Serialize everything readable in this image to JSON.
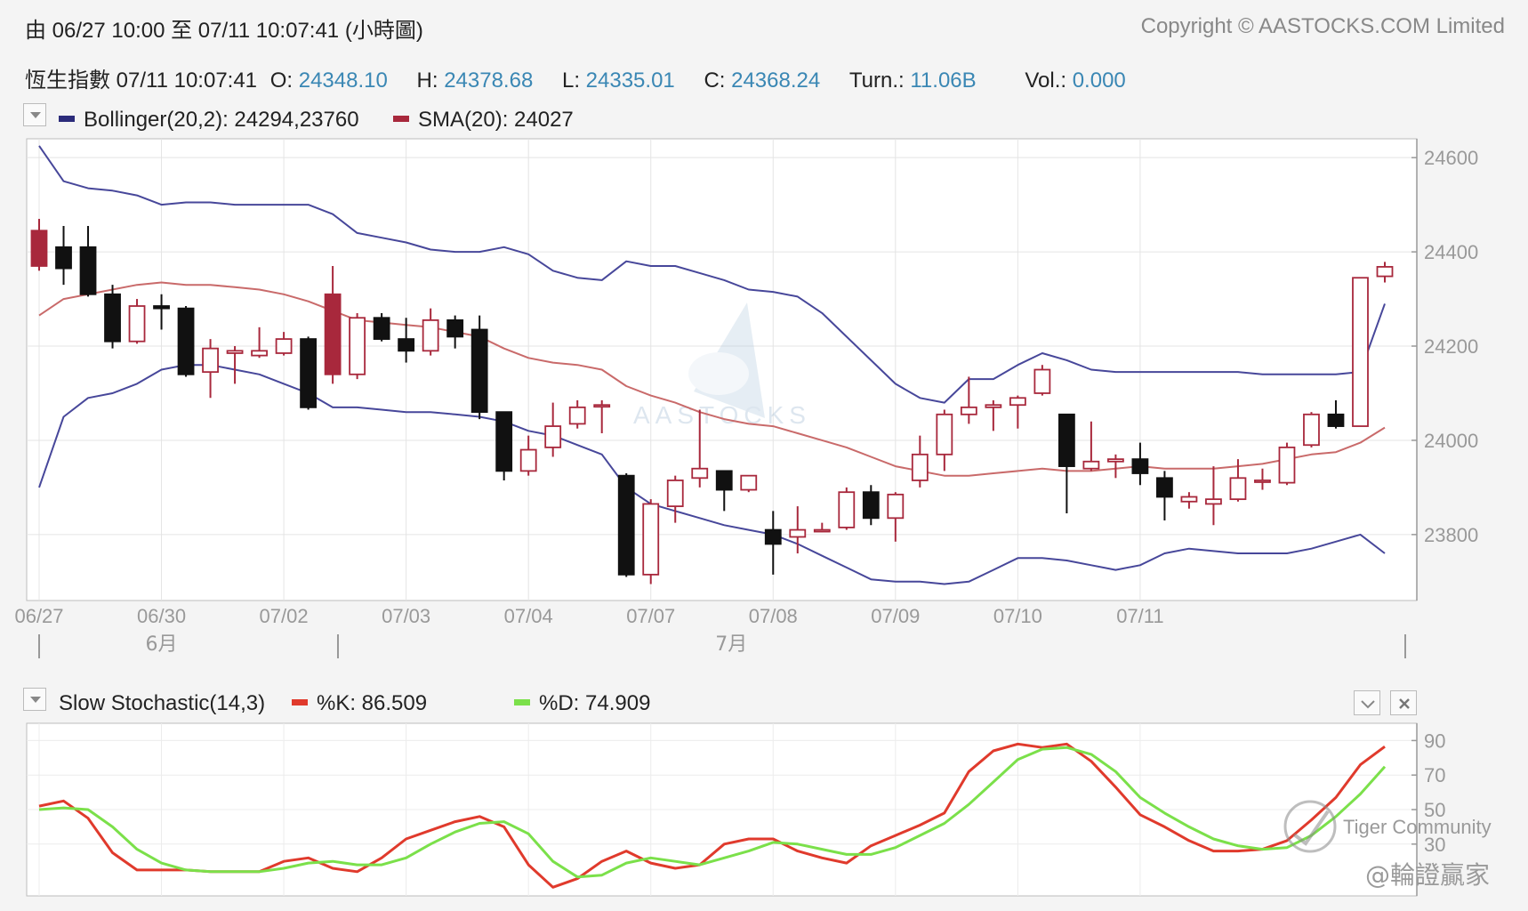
{
  "header": {
    "range_label": "由  06/27 10:00 至  07/11 10:07:41 (小時圖)",
    "copyright": "Copyright © AASTOCKS.COM Limited"
  },
  "quote": {
    "name_time": "恆生指數 07/11 10:07:41",
    "open_label": "O:",
    "open": "24348.10",
    "high_label": "H:",
    "high": "24378.68",
    "low_label": "L:",
    "low": "24335.01",
    "close_label": "C:",
    "close": "24368.24",
    "turn_label": "Turn.:",
    "turn": "11.06B",
    "vol_label": "Vol.:",
    "vol": "0.000"
  },
  "indicators": {
    "bollinger_label": "Bollinger(20,2): 24294,23760",
    "sma_label": "SMA(20): 24027",
    "stoch_title": "Slow Stochastic(14,3)",
    "k_label": "%K: 86.509",
    "d_label": "%D: 74.909"
  },
  "watermark": "AASTOCKS",
  "overlay_credits": [
    "Tiger Community",
    "@輪證贏家"
  ],
  "colors": {
    "up": "#a8283c",
    "down": "#111111",
    "bollinger": "#47479a",
    "sma": "#c96a6a",
    "k_line": "#e03a2c",
    "d_line": "#7be04a",
    "value_text": "#3a87b4"
  },
  "chart_data": [
    {
      "type": "candlestick",
      "x_ticks": [
        "06/27",
        "06/30",
        "07/02",
        "07/03",
        "07/04",
        "07/07",
        "07/08",
        "07/09",
        "07/10",
        "07/11"
      ],
      "x_tick_index": [
        0,
        5,
        10,
        15,
        20,
        25,
        30,
        35,
        40,
        45
      ],
      "month_labels": [
        {
          "label": "6月",
          "index": 5
        },
        {
          "label": "7月",
          "index": 28
        }
      ],
      "y_ticks": [
        24600,
        24400,
        24200,
        24000,
        23800
      ],
      "ylim": [
        23660,
        24640
      ],
      "candles": [
        {
          "o": 24370,
          "h": 24470,
          "l": 24360,
          "c": 24445
        },
        {
          "o": 24410,
          "h": 24455,
          "l": 24330,
          "c": 24365
        },
        {
          "o": 24410,
          "h": 24455,
          "l": 24305,
          "c": 24310
        },
        {
          "o": 24310,
          "h": 24330,
          "l": 24195,
          "c": 24210
        },
        {
          "o": 24210,
          "h": 24300,
          "l": 24205,
          "c": 24285
        },
        {
          "o": 24285,
          "h": 24310,
          "l": 24235,
          "c": 24280
        },
        {
          "o": 24280,
          "h": 24285,
          "l": 24135,
          "c": 24140
        },
        {
          "o": 24145,
          "h": 24215,
          "l": 24090,
          "c": 24195
        },
        {
          "o": 24185,
          "h": 24200,
          "l": 24120,
          "c": 24190
        },
        {
          "o": 24180,
          "h": 24240,
          "l": 24175,
          "c": 24190
        },
        {
          "o": 24185,
          "h": 24230,
          "l": 24180,
          "c": 24215
        },
        {
          "o": 24215,
          "h": 24220,
          "l": 24065,
          "c": 24070
        },
        {
          "o": 24140,
          "h": 24370,
          "l": 24120,
          "c": 24310
        },
        {
          "o": 24140,
          "h": 24270,
          "l": 24130,
          "c": 24260
        },
        {
          "o": 24260,
          "h": 24270,
          "l": 24210,
          "c": 24215
        },
        {
          "o": 24215,
          "h": 24260,
          "l": 24165,
          "c": 24190
        },
        {
          "o": 24190,
          "h": 24280,
          "l": 24180,
          "c": 24255
        },
        {
          "o": 24255,
          "h": 24265,
          "l": 24195,
          "c": 24220
        },
        {
          "o": 24235,
          "h": 24265,
          "l": 24045,
          "c": 24060
        },
        {
          "o": 24060,
          "h": 24060,
          "l": 23915,
          "c": 23935
        },
        {
          "o": 23935,
          "h": 24010,
          "l": 23925,
          "c": 23980
        },
        {
          "o": 23985,
          "h": 24080,
          "l": 23965,
          "c": 24030
        },
        {
          "o": 24035,
          "h": 24085,
          "l": 24025,
          "c": 24070
        },
        {
          "o": 24075,
          "h": 24085,
          "l": 24015,
          "c": 24075
        },
        {
          "o": 23925,
          "h": 23930,
          "l": 23710,
          "c": 23715
        },
        {
          "o": 23715,
          "h": 23875,
          "l": 23695,
          "c": 23865
        },
        {
          "o": 23860,
          "h": 23925,
          "l": 23825,
          "c": 23915
        },
        {
          "o": 23920,
          "h": 24065,
          "l": 23900,
          "c": 23940
        },
        {
          "o": 23935,
          "h": 23935,
          "l": 23850,
          "c": 23895
        },
        {
          "o": 23895,
          "h": 23925,
          "l": 23890,
          "c": 23925
        },
        {
          "o": 23810,
          "h": 23850,
          "l": 23715,
          "c": 23780
        },
        {
          "o": 23795,
          "h": 23860,
          "l": 23760,
          "c": 23810
        },
        {
          "o": 23810,
          "h": 23825,
          "l": 23805,
          "c": 23810
        },
        {
          "o": 23815,
          "h": 23900,
          "l": 23810,
          "c": 23890
        },
        {
          "o": 23890,
          "h": 23905,
          "l": 23820,
          "c": 23835
        },
        {
          "o": 23835,
          "h": 23890,
          "l": 23785,
          "c": 23885
        },
        {
          "o": 23915,
          "h": 24010,
          "l": 23900,
          "c": 23970
        },
        {
          "o": 23970,
          "h": 24065,
          "l": 23935,
          "c": 24055
        },
        {
          "o": 24055,
          "h": 24135,
          "l": 24035,
          "c": 24070
        },
        {
          "o": 24070,
          "h": 24085,
          "l": 24020,
          "c": 24075
        },
        {
          "o": 24075,
          "h": 24095,
          "l": 24025,
          "c": 24090
        },
        {
          "o": 24100,
          "h": 24160,
          "l": 24095,
          "c": 24150
        },
        {
          "o": 24055,
          "h": 24055,
          "l": 23845,
          "c": 23945
        },
        {
          "o": 23940,
          "h": 24040,
          "l": 23935,
          "c": 23955
        },
        {
          "o": 23955,
          "h": 23970,
          "l": 23920,
          "c": 23960
        },
        {
          "o": 23960,
          "h": 23995,
          "l": 23905,
          "c": 23930
        },
        {
          "o": 23920,
          "h": 23935,
          "l": 23830,
          "c": 23880
        },
        {
          "o": 23870,
          "h": 23890,
          "l": 23855,
          "c": 23880
        },
        {
          "o": 23865,
          "h": 23945,
          "l": 23820,
          "c": 23875
        },
        {
          "o": 23875,
          "h": 23960,
          "l": 23870,
          "c": 23920
        },
        {
          "o": 23915,
          "h": 23940,
          "l": 23895,
          "c": 23915
        },
        {
          "o": 23910,
          "h": 23995,
          "l": 23905,
          "c": 23985
        },
        {
          "o": 23990,
          "h": 24060,
          "l": 23985,
          "c": 24055
        },
        {
          "o": 24055,
          "h": 24085,
          "l": 24025,
          "c": 24030
        },
        {
          "o": 24030,
          "h": 24345,
          "l": 24030,
          "c": 24345
        },
        {
          "o": 24348.1,
          "h": 24378.68,
          "l": 24335.01,
          "c": 24368.24
        }
      ],
      "bollinger_upper": [
        24625,
        24550,
        24535,
        24530,
        24520,
        24500,
        24505,
        24505,
        24500,
        24500,
        24500,
        24500,
        24480,
        24440,
        24430,
        24420,
        24405,
        24400,
        24400,
        24410,
        24395,
        24360,
        24345,
        24340,
        24380,
        24370,
        24370,
        24355,
        24340,
        24320,
        24315,
        24305,
        24270,
        24220,
        24170,
        24120,
        24090,
        24080,
        24130,
        24130,
        24160,
        24185,
        24170,
        24150,
        24145,
        24145,
        24145,
        24145,
        24145,
        24145,
        24140,
        24140,
        24140,
        24140,
        24145,
        24290
      ],
      "bollinger_lower": [
        23900,
        24050,
        24090,
        24100,
        24120,
        24150,
        24160,
        24160,
        24150,
        24140,
        24120,
        24100,
        24070,
        24070,
        24065,
        24060,
        24060,
        24055,
        24050,
        24040,
        24020,
        24010,
        23990,
        23970,
        23900,
        23865,
        23850,
        23835,
        23820,
        23810,
        23800,
        23780,
        23755,
        23730,
        23705,
        23700,
        23700,
        23695,
        23700,
        23725,
        23750,
        23750,
        23745,
        23735,
        23725,
        23735,
        23760,
        23770,
        23765,
        23760,
        23760,
        23760,
        23770,
        23785,
        23800,
        23760
      ],
      "sma20": [
        24265,
        24300,
        24310,
        24320,
        24330,
        24335,
        24330,
        24330,
        24325,
        24320,
        24310,
        24295,
        24275,
        24255,
        24250,
        24245,
        24240,
        24230,
        24220,
        24195,
        24175,
        24165,
        24160,
        24150,
        24115,
        24095,
        24080,
        24060,
        24045,
        24035,
        24030,
        24015,
        24000,
        23985,
        23965,
        23945,
        23935,
        23925,
        23925,
        23930,
        23935,
        23940,
        23935,
        23935,
        23940,
        23945,
        23940,
        23940,
        23940,
        23945,
        23950,
        23960,
        23970,
        23975,
        23995,
        24027
      ]
    },
    {
      "type": "line",
      "title": "Slow Stochastic(14,3)",
      "y_ticks": [
        90,
        70,
        50,
        30
      ],
      "ylim": [
        0,
        100
      ],
      "series": [
        {
          "name": "%K",
          "values": [
            52,
            55,
            45,
            25,
            15,
            15,
            15,
            14,
            14,
            14,
            20,
            22,
            16,
            14,
            22,
            33,
            38,
            43,
            46,
            40,
            18,
            5,
            10,
            20,
            26,
            19,
            16,
            18,
            30,
            33,
            33,
            26,
            22,
            19,
            29,
            35,
            41,
            48,
            72,
            84,
            88,
            86,
            88,
            78,
            63,
            47,
            40,
            32,
            26,
            26,
            27,
            32,
            44,
            57,
            76,
            86.509
          ]
        },
        {
          "name": "%D",
          "values": [
            50,
            51,
            50,
            40,
            27,
            19,
            15,
            14,
            14,
            14,
            16,
            19,
            20,
            18,
            18,
            22,
            30,
            37,
            42,
            43,
            36,
            20,
            11,
            12,
            19,
            22,
            20,
            18,
            22,
            26,
            31,
            30,
            27,
            24,
            24,
            28,
            35,
            42,
            53,
            66,
            79,
            85,
            86,
            82,
            72,
            57,
            48,
            40,
            33,
            29,
            27,
            28,
            35,
            46,
            59,
            74.909
          ]
        }
      ]
    }
  ]
}
